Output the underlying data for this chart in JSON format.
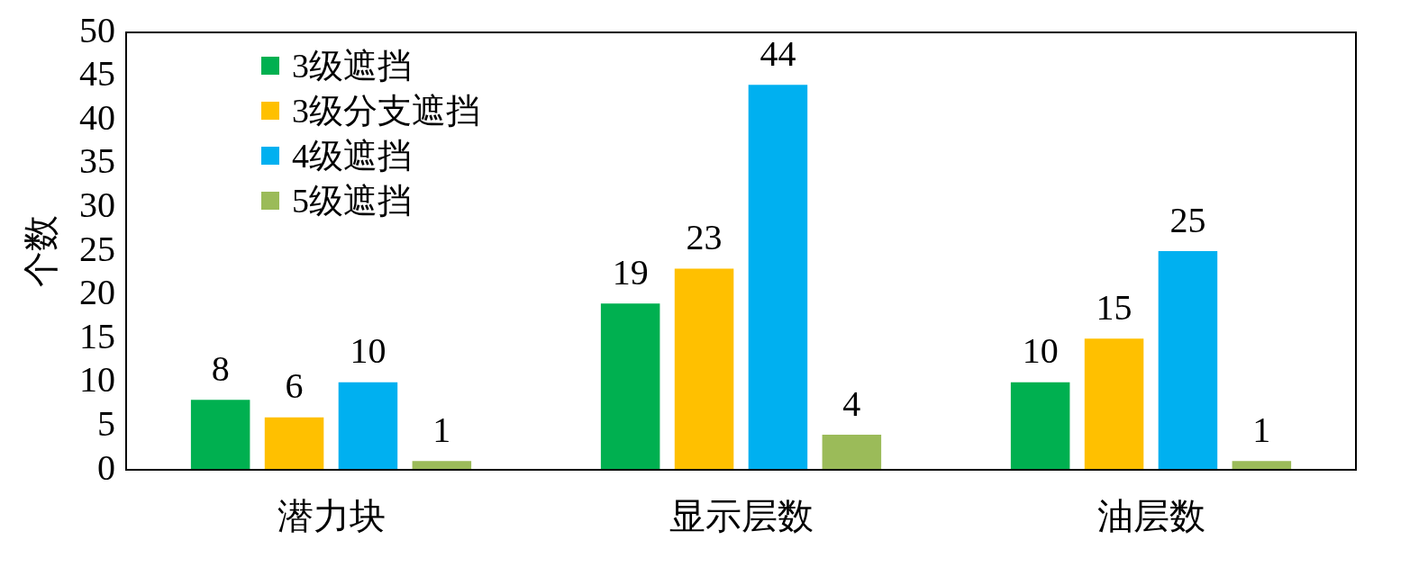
{
  "chart_data": {
    "type": "bar",
    "ylabel": "个数",
    "categories": [
      "潜力块",
      "显示层数",
      "油层数"
    ],
    "series": [
      {
        "name": "3级遮挡",
        "color": "#00b050",
        "values": [
          8,
          19,
          10
        ]
      },
      {
        "name": "3级分支遮挡",
        "color": "#ffc000",
        "values": [
          6,
          23,
          15
        ]
      },
      {
        "name": "4级遮挡",
        "color": "#00b0f0",
        "values": [
          10,
          44,
          25
        ]
      },
      {
        "name": "5级遮挡",
        "color": "#9bbb59",
        "values": [
          1,
          4,
          1
        ]
      }
    ],
    "ylim": [
      0,
      50
    ],
    "yticks": [
      0,
      5,
      10,
      15,
      20,
      25,
      30,
      35,
      40,
      45,
      50
    ],
    "data_labels": true,
    "legend": "top left",
    "grid": false
  }
}
